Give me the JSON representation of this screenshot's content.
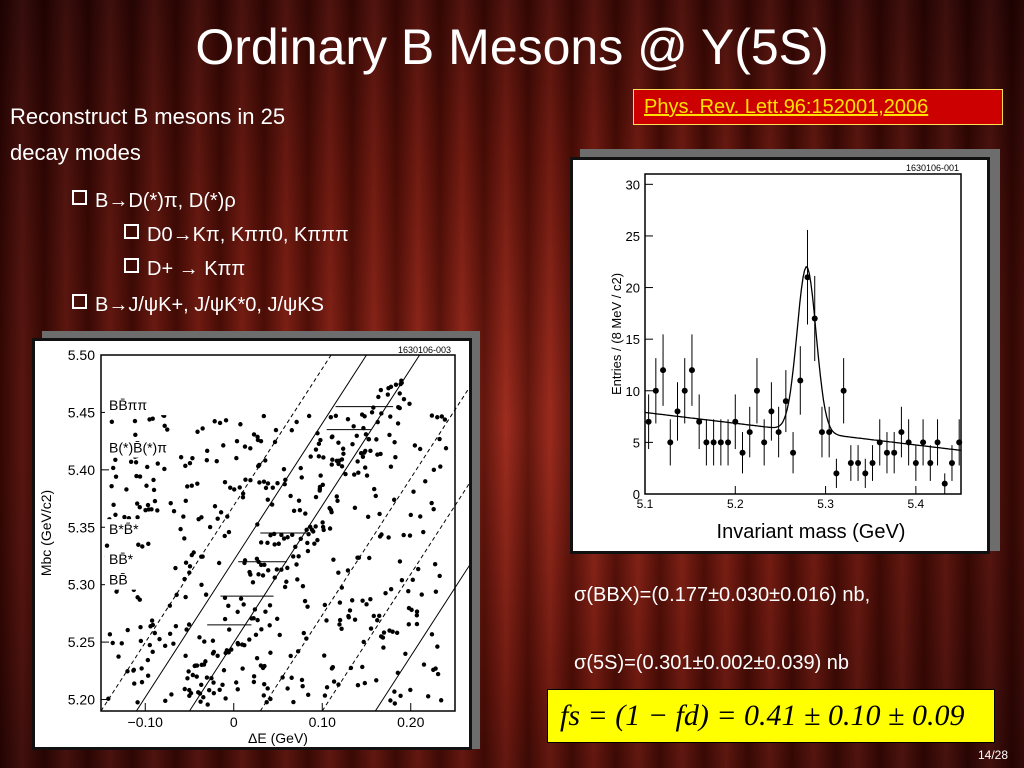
{
  "slide": {
    "title": "Ordinary B Mesons @ Y(5S)",
    "reference": "Phys. Rev. Lett.96:152001,2006",
    "intro_line1": "Reconstruct B mesons in 25",
    "intro_line2": "decay modes",
    "bullet1": "B→D(*)π, D(*)ρ",
    "sub1": "D0→Kπ, Kππ0, Kπππ",
    "sub2": "D+ → Kππ",
    "bullet2": "B→J/ψK+, J/ψK*0, J/ψKS",
    "sigma_bbx": "σ(BBX)=(0.177±0.030±0.016) nb,",
    "sigma_5s": "σ(5S)=(0.301±0.002±0.039) nb",
    "formula": "fs = (1 − fd) = 0.41 ± 0.10 ± 0.09",
    "page_number": "14/28"
  },
  "chart_data": [
    {
      "type": "scatter",
      "id_label": "1630106-003",
      "xlabel": "ΔE (GeV)",
      "ylabel": "Mbc (GeV/c2)",
      "xlim": [
        -0.15,
        0.25
      ],
      "ylim": [
        5.19,
        5.5
      ],
      "xticks": [
        "−0.10",
        "0",
        "0.10",
        "0.20"
      ],
      "yticks": [
        "5.20",
        "5.25",
        "5.30",
        "5.35",
        "5.40",
        "5.45",
        "5.50"
      ],
      "band_labels": [
        "BB̄ππ",
        "B(*)B̄(*)π",
        "B*B̄*",
        "BB̄*",
        "BB̄"
      ],
      "grid": false
    },
    {
      "type": "line",
      "id_label": "1630106-001",
      "xlabel": "Invariant mass (GeV)",
      "ylabel": "Entries / (8 MeV / c2)",
      "xlim": [
        5.1,
        5.45
      ],
      "ylim": [
        0,
        31
      ],
      "xticks": [
        "5.1",
        "5.2",
        "5.3",
        "5.4"
      ],
      "yticks": [
        "0",
        "5",
        "10",
        "15",
        "20",
        "25",
        "30"
      ],
      "points": [
        [
          5.104,
          7
        ],
        [
          5.112,
          10
        ],
        [
          5.12,
          12
        ],
        [
          5.128,
          5
        ],
        [
          5.136,
          8
        ],
        [
          5.144,
          10
        ],
        [
          5.152,
          12
        ],
        [
          5.16,
          7
        ],
        [
          5.168,
          5
        ],
        [
          5.176,
          5
        ],
        [
          5.184,
          5
        ],
        [
          5.192,
          5
        ],
        [
          5.2,
          7
        ],
        [
          5.208,
          4
        ],
        [
          5.216,
          6
        ],
        [
          5.224,
          10
        ],
        [
          5.232,
          5
        ],
        [
          5.24,
          8
        ],
        [
          5.248,
          6
        ],
        [
          5.256,
          9
        ],
        [
          5.264,
          4
        ],
        [
          5.272,
          11
        ],
        [
          5.28,
          21
        ],
        [
          5.288,
          17
        ],
        [
          5.296,
          6
        ],
        [
          5.304,
          6
        ],
        [
          5.312,
          2
        ],
        [
          5.32,
          10
        ],
        [
          5.328,
          3
        ],
        [
          5.336,
          3
        ],
        [
          5.344,
          2
        ],
        [
          5.352,
          3
        ],
        [
          5.36,
          5
        ],
        [
          5.368,
          4
        ],
        [
          5.376,
          4
        ],
        [
          5.384,
          6
        ],
        [
          5.392,
          5
        ],
        [
          5.4,
          3
        ],
        [
          5.408,
          5
        ],
        [
          5.416,
          3
        ],
        [
          5.424,
          5
        ],
        [
          5.432,
          1
        ],
        [
          5.44,
          3
        ],
        [
          5.448,
          5
        ]
      ],
      "fit": "gaussian+linear background",
      "grid": false
    }
  ]
}
